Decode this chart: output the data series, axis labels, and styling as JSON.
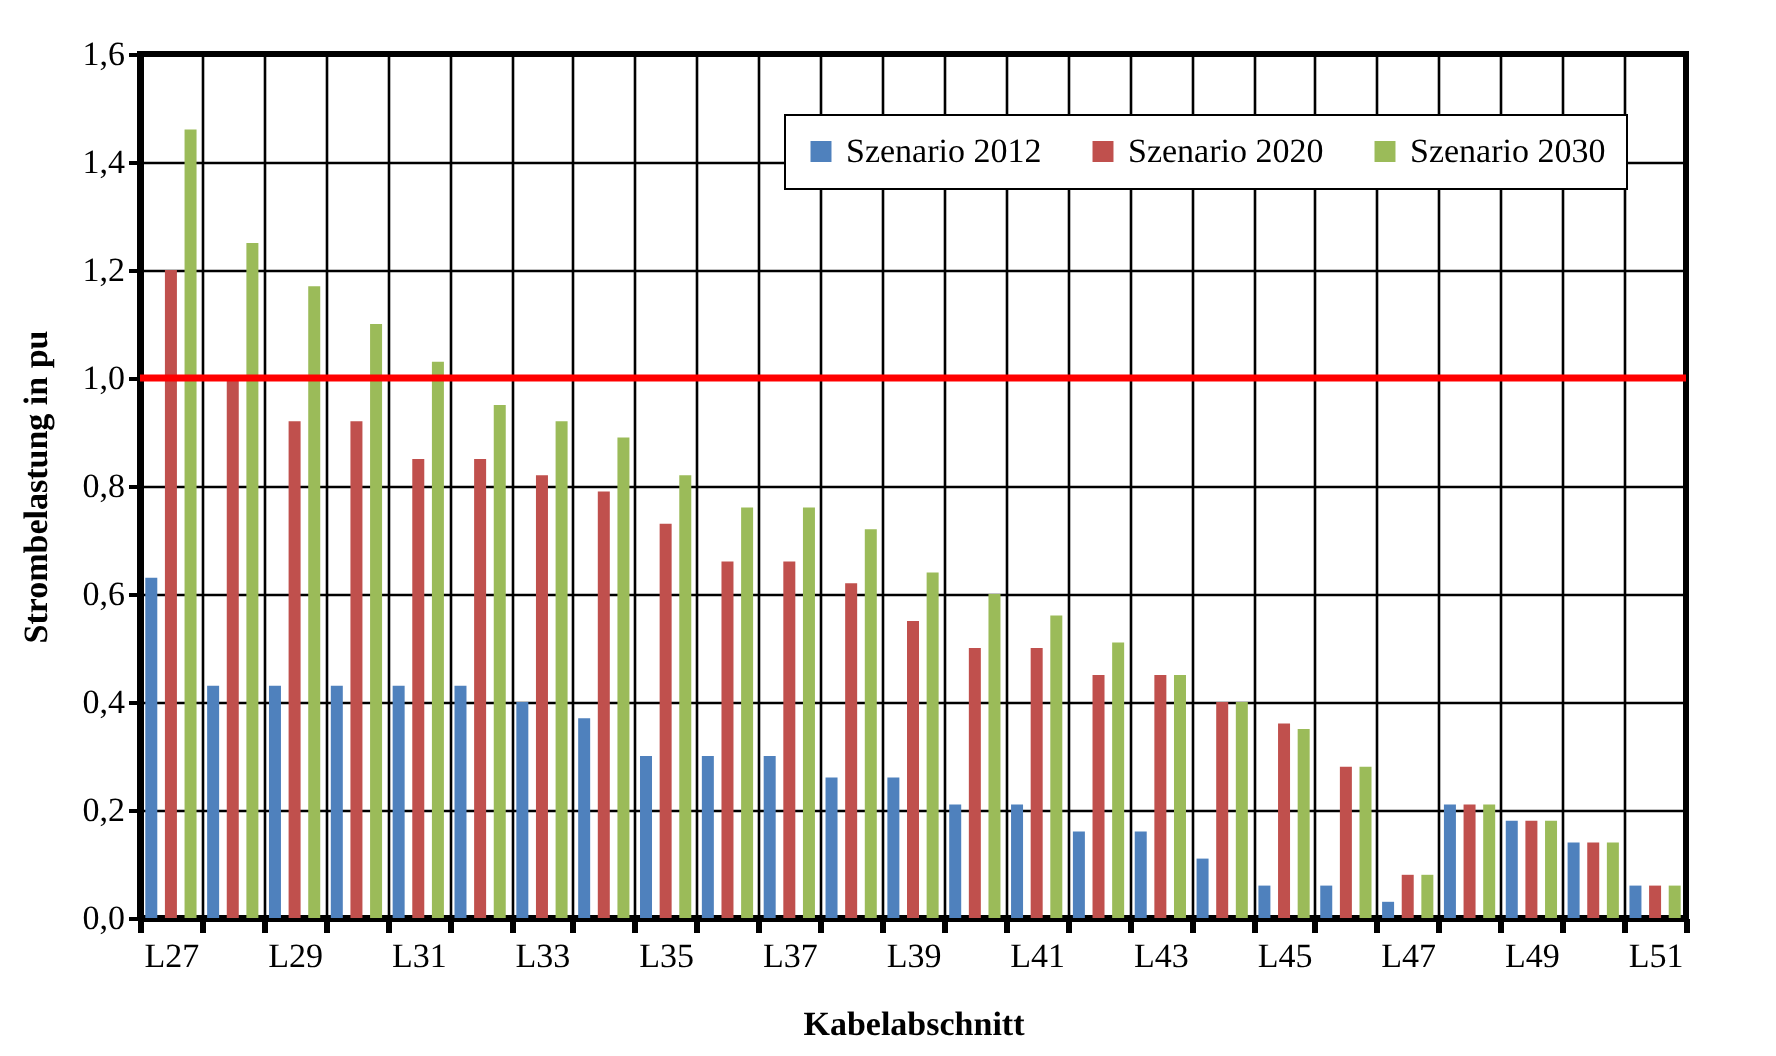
{
  "chart_data": {
    "type": "bar",
    "xlabel": "Kabelabschnitt",
    "ylabel": "Strombelastung in pu",
    "categories": [
      "L27",
      null,
      "L29",
      null,
      "L31",
      null,
      "L33",
      null,
      "L35",
      null,
      "L37",
      null,
      "L39",
      null,
      "L41",
      null,
      "L43",
      null,
      "L45",
      null,
      "L47",
      null,
      "L49",
      null,
      "L51"
    ],
    "series": [
      {
        "name": "Szenario 2012",
        "color": "#4f81bd",
        "values": [
          0.63,
          0.43,
          0.43,
          0.43,
          0.43,
          0.43,
          0.4,
          0.37,
          0.3,
          0.3,
          0.3,
          0.26,
          0.26,
          0.21,
          0.21,
          0.16,
          0.16,
          0.11,
          0.06,
          0.06,
          0.03,
          0.21,
          0.18,
          0.14,
          0.06
        ]
      },
      {
        "name": "Szenario 2020",
        "color": "#c0504d",
        "values": [
          1.2,
          1.0,
          0.92,
          0.92,
          0.85,
          0.85,
          0.82,
          0.79,
          0.73,
          0.66,
          0.66,
          0.62,
          0.55,
          0.5,
          0.5,
          0.45,
          0.45,
          0.4,
          0.36,
          0.28,
          0.08,
          0.21,
          0.18,
          0.14,
          0.06
        ]
      },
      {
        "name": "Szenario 2030",
        "color": "#9bbb59",
        "values": [
          1.46,
          1.25,
          1.17,
          1.1,
          1.03,
          0.95,
          0.92,
          0.89,
          0.82,
          0.76,
          0.76,
          0.72,
          0.64,
          0.6,
          0.56,
          0.51,
          0.45,
          0.4,
          0.35,
          0.28,
          0.08,
          0.21,
          0.18,
          0.14,
          0.06
        ]
      }
    ],
    "ylim": [
      0,
      1.6
    ],
    "yticks": [
      {
        "value": 0,
        "label": "0,0"
      },
      {
        "value": 0.2,
        "label": "0,2"
      },
      {
        "value": 0.4,
        "label": "0,4"
      },
      {
        "value": 0.6,
        "label": "0,6"
      },
      {
        "value": 0.8,
        "label": "0,8"
      },
      {
        "value": 1.0,
        "label": "1,0"
      },
      {
        "value": 1.2,
        "label": "1,2"
      },
      {
        "value": 1.4,
        "label": "1,4"
      },
      {
        "value": 1.6,
        "label": "1,6"
      }
    ],
    "ref_lines": [
      {
        "axis": "y",
        "value": 1.0,
        "color": "#ff0000"
      }
    ],
    "grid": true,
    "legend": "top right"
  }
}
